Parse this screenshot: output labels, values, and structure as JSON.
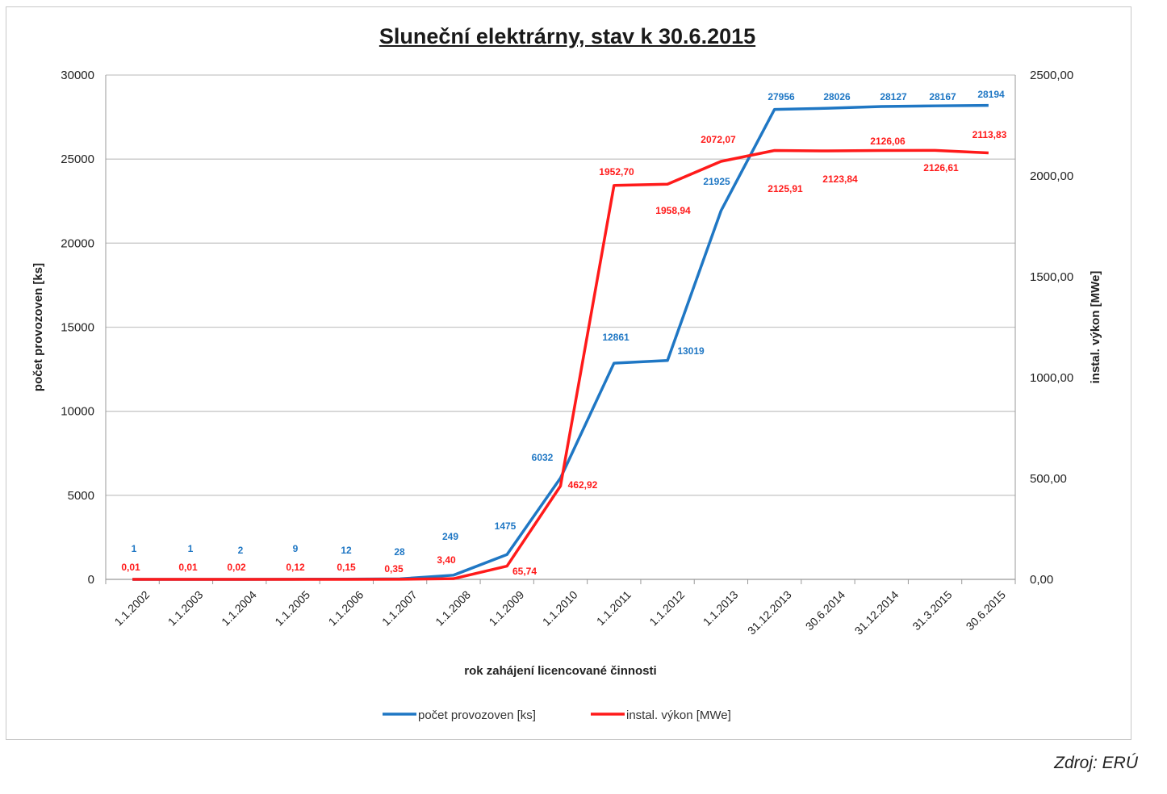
{
  "chart_data": {
    "type": "line",
    "title": "Sluneční elektrárny, stav k 30.6.2015",
    "xlabel": "rok zahájení licencované činnosti",
    "ylabel": "počet provozoven [ks]",
    "y2label": "instal. výkon [MWe]",
    "ylim": [
      0,
      30000
    ],
    "y2lim": [
      0,
      2500
    ],
    "yticks": [
      "0",
      "5000",
      "10000",
      "15000",
      "20000",
      "25000",
      "30000"
    ],
    "y2ticks": [
      "0,00",
      "500,00",
      "1000,00",
      "1500,00",
      "2000,00",
      "2500,00"
    ],
    "grid": true,
    "legend_position": "bottom",
    "categories": [
      "1.1.2002",
      "1.1.2003",
      "1.1.2004",
      "1.1.2005",
      "1.1.2006",
      "1.1.2007",
      "1.1.2008",
      "1.1.2009",
      "1.1.2010",
      "1.1.2011",
      "1.1.2012",
      "1.1.2013",
      "31.12.2013",
      "30.6.2014",
      "31.12.2014",
      "31.3.2015",
      "30.6.2015"
    ],
    "series": [
      {
        "name": "počet provozoven [ks]",
        "axis": "left",
        "color": "#1f77c4",
        "values": [
          1,
          1,
          2,
          9,
          12,
          28,
          249,
          1475,
          6032,
          12861,
          13019,
          21925,
          27956,
          28026,
          28127,
          28167,
          28194
        ],
        "labels": [
          "1",
          "1",
          "2",
          "9",
          "12",
          "28",
          "249",
          "1475",
          "6032",
          "12861",
          "13019",
          "21925",
          "27956",
          "28026",
          "28127",
          "28167",
          "28194"
        ]
      },
      {
        "name": "instal. výkon [MWe]",
        "axis": "right",
        "color": "#ff1a1a",
        "values": [
          0.01,
          0.01,
          0.02,
          0.12,
          0.15,
          0.35,
          3.4,
          65.74,
          462.92,
          1952.7,
          1958.94,
          2072.07,
          2125.91,
          2123.84,
          2126.06,
          2126.61,
          2113.83
        ],
        "labels": [
          "0,01",
          "0,01",
          "0,02",
          "0,12",
          "0,15",
          "0,35",
          "3,40",
          "65,74",
          "462,92",
          "1952,70",
          "1958,94",
          "2072,07",
          "2125,91",
          "2123,84",
          "2126,06",
          "2126,61",
          "2113,83"
        ]
      }
    ]
  },
  "source": "Zdroj: ERÚ"
}
